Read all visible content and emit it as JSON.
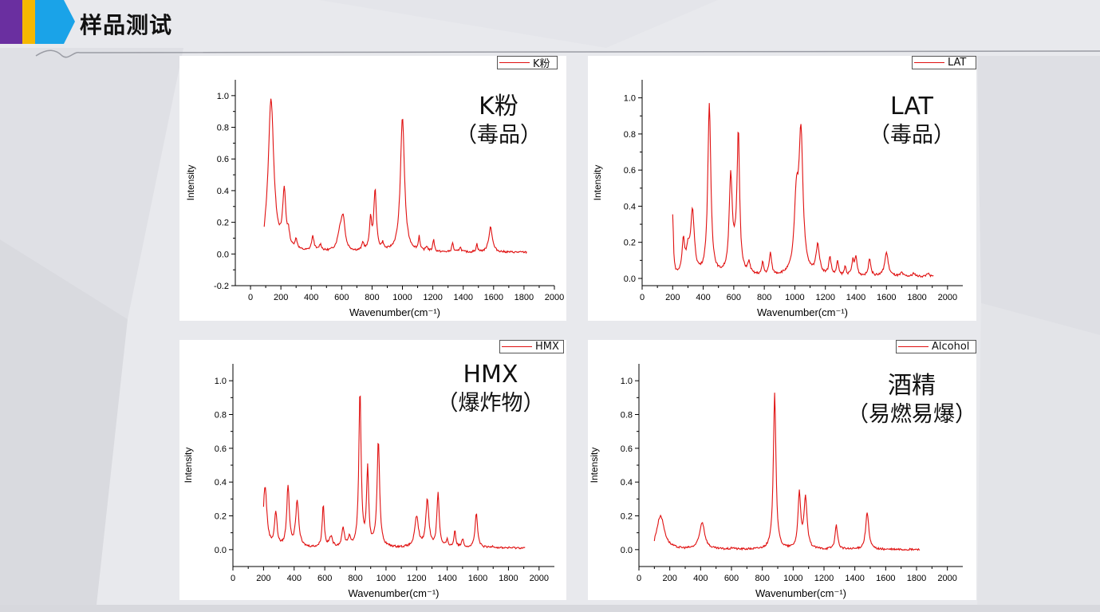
{
  "page": {
    "title": "样品测试",
    "colors": {
      "stripe_purple": "#6a2fa0",
      "stripe_yellow": "#f5b800",
      "stripe_blue": "#1aa3e8",
      "line": "#e01010"
    }
  },
  "chart_data": [
    {
      "type": "line",
      "legend": "K粉",
      "title_line1": "K粉",
      "title_line2": "（毒品）",
      "xlabel": "Wavenumber(cm⁻¹)",
      "ylabel": "Intensity",
      "xlim": [
        -100,
        2000
      ],
      "ylim": [
        -0.2,
        1.1
      ],
      "xticks": [
        0,
        200,
        400,
        600,
        800,
        1000,
        1200,
        1400,
        1600,
        1800,
        2000
      ],
      "yticks": [
        -0.2,
        0.0,
        0.2,
        0.4,
        0.6,
        0.8,
        1.0
      ],
      "x_range": [
        90,
        1820
      ],
      "baseline": 0.01,
      "peaks": [
        [
          90,
          -0.03,
          3
        ],
        [
          135,
          0.96,
          22
        ],
        [
          222,
          0.35,
          12
        ],
        [
          250,
          0.08,
          10
        ],
        [
          300,
          0.06,
          10
        ],
        [
          410,
          0.09,
          10
        ],
        [
          460,
          0.04,
          10
        ],
        [
          590,
          0.12,
          20
        ],
        [
          610,
          0.18,
          14
        ],
        [
          740,
          0.05,
          8
        ],
        [
          790,
          0.19,
          9
        ],
        [
          820,
          0.38,
          10
        ],
        [
          870,
          0.04,
          8
        ],
        [
          1000,
          0.85,
          16
        ],
        [
          1110,
          0.09,
          6
        ],
        [
          1160,
          0.03,
          8
        ],
        [
          1205,
          0.08,
          6
        ],
        [
          1330,
          0.06,
          6
        ],
        [
          1380,
          0.03,
          8
        ],
        [
          1490,
          0.05,
          6
        ],
        [
          1580,
          0.16,
          14
        ]
      ]
    },
    {
      "type": "line",
      "legend": "LAT",
      "title_line1": "LAT",
      "title_line2": "（毒品）",
      "xlabel": "Wavenumber(cm⁻¹)",
      "ylabel": "Intensity",
      "xlim": [
        0,
        2100
      ],
      "ylim": [
        -0.04,
        1.1
      ],
      "xticks": [
        0,
        200,
        400,
        600,
        800,
        1000,
        1200,
        1400,
        1600,
        1800,
        2000
      ],
      "yticks": [
        0.0,
        0.2,
        0.4,
        0.6,
        0.8,
        1.0
      ],
      "x_range": [
        200,
        1910
      ],
      "baseline": 0.01,
      "peaks": [
        [
          200,
          0.33,
          6
        ],
        [
          270,
          0.18,
          10
        ],
        [
          330,
          0.34,
          14
        ],
        [
          300,
          0.12,
          14
        ],
        [
          440,
          0.94,
          12
        ],
        [
          580,
          0.52,
          12
        ],
        [
          630,
          0.75,
          10
        ],
        [
          610,
          0.08,
          20
        ],
        [
          700,
          0.06,
          10
        ],
        [
          790,
          0.07,
          7
        ],
        [
          840,
          0.12,
          9
        ],
        [
          1010,
          0.38,
          16
        ],
        [
          1040,
          0.76,
          16
        ],
        [
          1150,
          0.16,
          14
        ],
        [
          1230,
          0.1,
          9
        ],
        [
          1280,
          0.08,
          7
        ],
        [
          1330,
          0.05,
          7
        ],
        [
          1380,
          0.08,
          8
        ],
        [
          1400,
          0.1,
          9
        ],
        [
          1490,
          0.1,
          9
        ],
        [
          1600,
          0.13,
          14
        ],
        [
          1700,
          0.02,
          8
        ],
        [
          1780,
          0.02,
          8
        ],
        [
          1870,
          0.02,
          8
        ]
      ]
    },
    {
      "type": "line",
      "legend": "HMX",
      "title_line1": "HMX",
      "title_line2": "（爆炸物）",
      "xlabel": "Wavenumber(cm⁻¹)",
      "ylabel": "Intensity",
      "xlim": [
        0,
        2100
      ],
      "ylim": [
        -0.1,
        1.1
      ],
      "xticks": [
        0,
        200,
        400,
        600,
        800,
        1000,
        1200,
        1400,
        1600,
        1800,
        2000
      ],
      "yticks": [
        0.0,
        0.2,
        0.4,
        0.6,
        0.8,
        1.0
      ],
      "x_range": [
        200,
        1910
      ],
      "baseline": 0.01,
      "peaks": [
        [
          210,
          0.36,
          14
        ],
        [
          280,
          0.2,
          10
        ],
        [
          360,
          0.36,
          10
        ],
        [
          420,
          0.27,
          12
        ],
        [
          590,
          0.25,
          8
        ],
        [
          640,
          0.06,
          12
        ],
        [
          720,
          0.11,
          10
        ],
        [
          760,
          0.05,
          10
        ],
        [
          830,
          0.92,
          9
        ],
        [
          880,
          0.46,
          8
        ],
        [
          950,
          0.63,
          10
        ],
        [
          1200,
          0.18,
          14
        ],
        [
          1270,
          0.28,
          12
        ],
        [
          1340,
          0.32,
          9
        ],
        [
          1400,
          0.04,
          8
        ],
        [
          1450,
          0.1,
          7
        ],
        [
          1500,
          0.05,
          8
        ],
        [
          1590,
          0.2,
          10
        ],
        [
          1700,
          0.01,
          10
        ]
      ]
    },
    {
      "type": "line",
      "legend": "Alcohol",
      "title_line1": "酒精",
      "title_line2": "（易燃易爆）",
      "xlabel": "Wavenumber(cm⁻¹)",
      "ylabel": "Intensity",
      "xlim": [
        0,
        2100
      ],
      "ylim": [
        -0.1,
        1.1
      ],
      "xticks": [
        0,
        200,
        400,
        600,
        800,
        1000,
        1200,
        1400,
        1600,
        1800,
        2000
      ],
      "yticks": [
        0.0,
        0.2,
        0.4,
        0.6,
        0.8,
        1.0
      ],
      "x_range": [
        100,
        1820
      ],
      "baseline": 0.0,
      "peaks": [
        [
          100,
          -0.02,
          3
        ],
        [
          140,
          0.2,
          30
        ],
        [
          410,
          0.16,
          20
        ],
        [
          610,
          0.01,
          10
        ],
        [
          880,
          0.93,
          10
        ],
        [
          1040,
          0.33,
          10
        ],
        [
          1080,
          0.3,
          12
        ],
        [
          1280,
          0.14,
          10
        ],
        [
          1480,
          0.22,
          12
        ]
      ]
    }
  ]
}
